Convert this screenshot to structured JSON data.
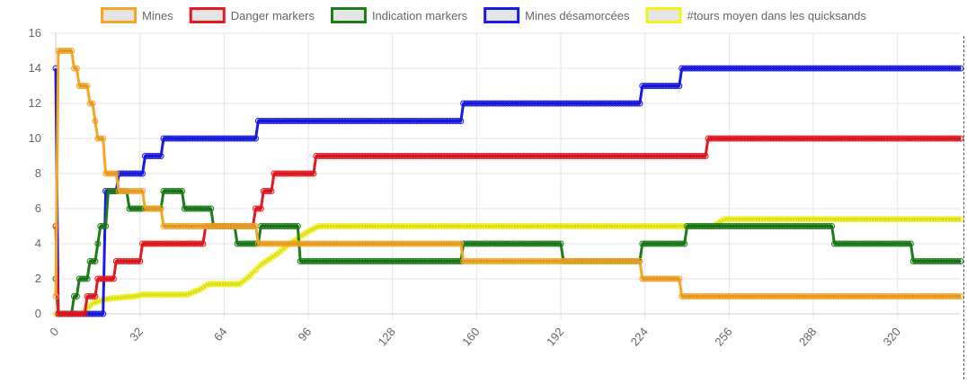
{
  "chart_data": {
    "type": "line",
    "title": "",
    "xlabel": "",
    "ylabel": "",
    "xlim": [
      0,
      344
    ],
    "ylim": [
      0,
      16
    ],
    "grid": true,
    "legend_position": "top",
    "x_ticks": [
      0,
      32,
      64,
      96,
      128,
      160,
      192,
      224,
      256,
      288,
      320
    ],
    "y_ticks": [
      0,
      2,
      4,
      6,
      8,
      10,
      12,
      14,
      16
    ],
    "series": [
      {
        "name": "Mines",
        "color": "#f5a623",
        "legend_fill": "#e5e5e5",
        "steps": [
          [
            0,
            1
          ],
          [
            1,
            15
          ],
          [
            7,
            14
          ],
          [
            9,
            13
          ],
          [
            13,
            12
          ],
          [
            15,
            11
          ],
          [
            16,
            10
          ],
          [
            19,
            8
          ],
          [
            24,
            7
          ],
          [
            34,
            6
          ],
          [
            41,
            5
          ],
          [
            77,
            4
          ],
          [
            155,
            3
          ],
          [
            223,
            2
          ],
          [
            238,
            1
          ],
          [
            344,
            1
          ]
        ]
      },
      {
        "name": "Danger markers",
        "color": "#e8171f",
        "legend_fill": "#e5e5e5",
        "steps": [
          [
            0,
            5
          ],
          [
            1,
            0
          ],
          [
            12,
            1
          ],
          [
            16,
            2
          ],
          [
            23,
            3
          ],
          [
            33,
            4
          ],
          [
            57,
            5
          ],
          [
            76,
            6
          ],
          [
            79,
            7
          ],
          [
            83,
            8
          ],
          [
            99,
            9
          ],
          [
            248,
            10
          ],
          [
            344,
            10
          ]
        ]
      },
      {
        "name": "Indication markers",
        "color": "#1a7d18",
        "legend_fill": "#e5e5e5",
        "steps": [
          [
            0,
            2
          ],
          [
            1,
            0
          ],
          [
            7,
            1
          ],
          [
            9,
            2
          ],
          [
            13,
            3
          ],
          [
            16,
            4
          ],
          [
            17,
            5
          ],
          [
            20,
            7
          ],
          [
            28,
            6
          ],
          [
            41,
            7
          ],
          [
            49,
            6
          ],
          [
            60,
            5
          ],
          [
            69,
            4
          ],
          [
            78,
            5
          ],
          [
            93,
            3
          ],
          [
            155,
            4
          ],
          [
            193,
            3
          ],
          [
            223,
            4
          ],
          [
            240,
            5
          ],
          [
            296,
            4
          ],
          [
            326,
            3
          ],
          [
            344,
            3
          ]
        ]
      },
      {
        "name": "Mines désamorcées",
        "color": "#1a1ae6",
        "legend_fill": "#e5e5e5",
        "steps": [
          [
            0,
            14
          ],
          [
            1,
            0
          ],
          [
            19,
            7
          ],
          [
            24,
            8
          ],
          [
            34,
            9
          ],
          [
            41,
            10
          ],
          [
            77,
            11
          ],
          [
            155,
            12
          ],
          [
            223,
            13
          ],
          [
            238,
            14
          ],
          [
            344,
            14
          ]
        ]
      },
      {
        "name": "#tours moyen dans les quicksands",
        "color": "#f2f21a",
        "legend_fill": "#e5e5e5",
        "points": [
          [
            0,
            0
          ],
          [
            10,
            0
          ],
          [
            12,
            0.3
          ],
          [
            14,
            0.6
          ],
          [
            18,
            0.8
          ],
          [
            22,
            0.9
          ],
          [
            30,
            1.0
          ],
          [
            33,
            1.1
          ],
          [
            50,
            1.1
          ],
          [
            55,
            1.4
          ],
          [
            58,
            1.7
          ],
          [
            70,
            1.7
          ],
          [
            74,
            2.2
          ],
          [
            78,
            2.8
          ],
          [
            84,
            3.4
          ],
          [
            89,
            4.0
          ],
          [
            93,
            4.4
          ],
          [
            96,
            4.7
          ],
          [
            100,
            5.0
          ],
          [
            250,
            5.0
          ],
          [
            254,
            5.4
          ],
          [
            344,
            5.4
          ]
        ]
      }
    ]
  }
}
